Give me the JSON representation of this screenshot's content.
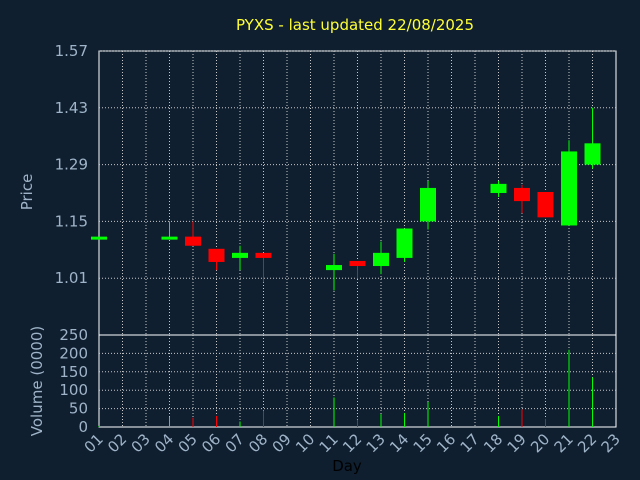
{
  "chart_data": {
    "type": "candlestick",
    "title": "PYXS - last updated 22/08/2025",
    "xlabel": "Day",
    "ylabel_price": "Price",
    "ylabel_volume": "Volume (0000)",
    "x_ticks": [
      "01",
      "02",
      "03",
      "04",
      "05",
      "06",
      "07",
      "08",
      "09",
      "10",
      "11",
      "12",
      "13",
      "14",
      "15",
      "16",
      "17",
      "18",
      "19",
      "20",
      "21",
      "22",
      "23"
    ],
    "price_ticks": [
      "1.57",
      "1.43",
      "1.29",
      "1.15",
      "1.01"
    ],
    "price_tick_values": [
      1.57,
      1.43,
      1.29,
      1.15,
      1.01
    ],
    "price_ylim": [
      0.87,
      1.57
    ],
    "volume_ticks": [
      "250",
      "200",
      "150",
      "100",
      "50",
      "0"
    ],
    "volume_tick_values": [
      250,
      200,
      150,
      100,
      50,
      0
    ],
    "volume_ylim": [
      0,
      250
    ],
    "grid": true,
    "up_color": "#00ff00",
    "down_color": "#ff0000",
    "candles": [
      {
        "day": "01",
        "open": 1.11,
        "high": 1.11,
        "low": 1.11,
        "close": 1.11,
        "volume": 3
      },
      {
        "day": "04",
        "open": 1.11,
        "high": 1.15,
        "low": 1.11,
        "close": 1.11,
        "volume": 28
      },
      {
        "day": "05",
        "open": 1.11,
        "high": 1.15,
        "low": 1.09,
        "close": 1.09,
        "volume": 25
      },
      {
        "day": "06",
        "open": 1.08,
        "high": 1.08,
        "low": 1.03,
        "close": 1.05,
        "volume": 30
      },
      {
        "day": "07",
        "open": 1.06,
        "high": 1.09,
        "low": 1.03,
        "close": 1.07,
        "volume": 15
      },
      {
        "day": "08",
        "open": 1.07,
        "high": 1.07,
        "low": 1.0,
        "close": 1.06,
        "volume": 45
      },
      {
        "day": "11",
        "open": 1.03,
        "high": 1.07,
        "low": 0.98,
        "close": 1.04,
        "volume": 80
      },
      {
        "day": "12",
        "open": 1.05,
        "high": 1.05,
        "low": 1.01,
        "close": 1.04,
        "volume": 20
      },
      {
        "day": "13",
        "open": 1.04,
        "high": 1.1,
        "low": 1.02,
        "close": 1.07,
        "volume": 35
      },
      {
        "day": "14",
        "open": 1.06,
        "high": 1.13,
        "low": 1.05,
        "close": 1.13,
        "volume": 38
      },
      {
        "day": "15",
        "open": 1.15,
        "high": 1.25,
        "low": 1.13,
        "close": 1.23,
        "volume": 68
      },
      {
        "day": "18",
        "open": 1.22,
        "high": 1.25,
        "low": 1.21,
        "close": 1.24,
        "volume": 30
      },
      {
        "day": "19",
        "open": 1.23,
        "high": 1.24,
        "low": 1.17,
        "close": 1.2,
        "volume": 48
      },
      {
        "day": "20",
        "open": 1.22,
        "high": 1.22,
        "low": 1.16,
        "close": 1.16,
        "volume": 22
      },
      {
        "day": "21",
        "open": 1.14,
        "high": 1.35,
        "low": 1.14,
        "close": 1.32,
        "volume": 210
      },
      {
        "day": "22",
        "open": 1.29,
        "high": 1.43,
        "low": 1.28,
        "close": 1.34,
        "volume": 135
      }
    ]
  }
}
